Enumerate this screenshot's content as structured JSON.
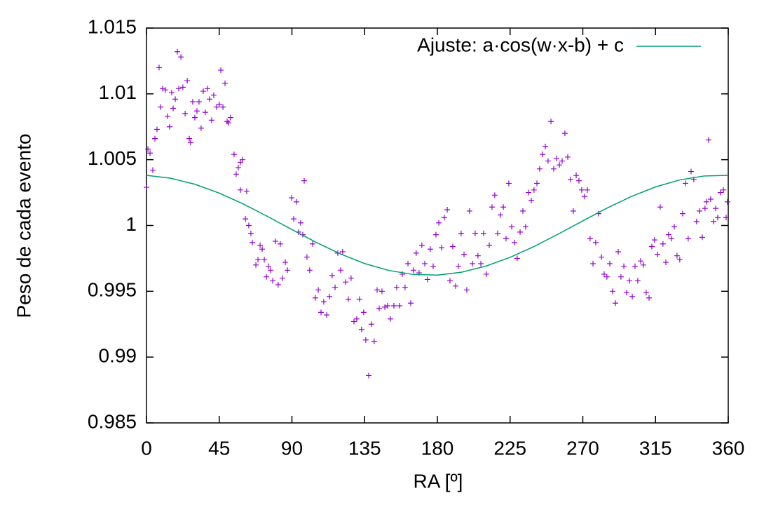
{
  "chart_data": {
    "type": "scatter",
    "x_label": "RA [º]",
    "y_label": "Peso de cada evento",
    "xlim": [
      0,
      360
    ],
    "xticks": [
      0,
      45,
      90,
      135,
      180,
      225,
      270,
      315,
      360
    ],
    "ylim": [
      0.985,
      1.015
    ],
    "yticks": [
      0.985,
      0.99,
      0.995,
      1,
      1.005,
      1.01,
      1.015
    ],
    "legend": "top-right",
    "series": [
      {
        "color": "#9400d3",
        "x": [
          0,
          0.9,
          2.2,
          3.9,
          5.2,
          6.5,
          7.8,
          8.7,
          10,
          11.7,
          13,
          14.3,
          15.6,
          16.5,
          17.8,
          19.1,
          20,
          21.3,
          22.5,
          23.9,
          25.2,
          26.5,
          27.3,
          28.6,
          29.9,
          31.2,
          32.5,
          33.8,
          35.1,
          36.4,
          37.7,
          39,
          40.3,
          41.6,
          43.4,
          45.1,
          46,
          47.3,
          48.6,
          49.9,
          50.7,
          52,
          54.2,
          55.5,
          56.8,
          58.1,
          59.4,
          58.1,
          62,
          61.2,
          63.3,
          64.6,
          65.5,
          67.7,
          69,
          70.3,
          71.6,
          72.9,
          74.2,
          75.5,
          76.8,
          78.1,
          79.8,
          81.5,
          82.8,
          84.1,
          85.9,
          87.2,
          89.8,
          91.1,
          92.8,
          94.1,
          95.4,
          96.7,
          97.6,
          99.3,
          101,
          102.8,
          104.5,
          106.3,
          108,
          109.7,
          111.5,
          113.2,
          114.9,
          116.7,
          118.4,
          120.1,
          121.4,
          123.2,
          124.9,
          126.6,
          128.4,
          130.1,
          131.8,
          133.1,
          134.4,
          135.7,
          137.5,
          139.2,
          140.9,
          142.7,
          144,
          145.7,
          147.5,
          149.2,
          150.9,
          153.1,
          154.8,
          156.6,
          158.3,
          160,
          161.8,
          163.5,
          165.2,
          166.9,
          168.7,
          170.4,
          172.2,
          173.9,
          175.6,
          177.4,
          179.1,
          180.9,
          182.6,
          184.3,
          186.1,
          187.8,
          189.5,
          191.3,
          193,
          194.7,
          196.5,
          198.2,
          199.9,
          201.7,
          203.4,
          205.1,
          206.9,
          208.6,
          210.3,
          212.1,
          213.8,
          215.5,
          217.3,
          219,
          220.8,
          222.5,
          224.2,
          226,
          227.7,
          229.4,
          231.2,
          232.9,
          234.6,
          236.4,
          238.1,
          239.8,
          241.6,
          243.3,
          245.1,
          246.8,
          248.5,
          250.3,
          252,
          253.7,
          255.5,
          257.2,
          258.9,
          260.7,
          262.4,
          264.1,
          265.9,
          267.6,
          269.3,
          271.1,
          272.8,
          274.5,
          276.3,
          278,
          279.7,
          281.5,
          283.2,
          284.9,
          286.7,
          288.4,
          290.2,
          291.9,
          293.6,
          295.4,
          297.1,
          298.8,
          300.6,
          302.3,
          304,
          305.8,
          307.5,
          309.2,
          311,
          312.7,
          314.4,
          316.2,
          317.9,
          319.6,
          321.4,
          323.1,
          324.8,
          326.6,
          328.3,
          330,
          331.8,
          333.5,
          335.2,
          337,
          338.7,
          340.4,
          342.2,
          343.9,
          345.6,
          346.5,
          347.8,
          349.1,
          350.9,
          352.2,
          353.5,
          355.2,
          357,
          358.7,
          359.5
        ],
        "values": [
          1.0029,
          1.0058,
          1.0055,
          1.0042,
          1.0066,
          1.0073,
          1.012,
          1.009,
          1.0104,
          1.0103,
          1.0083,
          1.0075,
          1.0101,
          1.0089,
          1.0096,
          1.0132,
          1.0104,
          1.0128,
          1.0105,
          1.0085,
          1.011,
          1.0066,
          1.0063,
          1.0094,
          1.0082,
          1.0087,
          1.0094,
          1.0074,
          1.0102,
          1.0086,
          1.0104,
          1.0096,
          1.008,
          1.0099,
          1.009,
          1.0092,
          1.0118,
          1.009,
          1.0108,
          1.0079,
          1.0078,
          1.0082,
          1.0054,
          1.0039,
          1.0044,
          1.0048,
          1.005,
          1.0027,
          1.0026,
          1.0005,
          1,
          0.9994,
          0.9987,
          0.997,
          0.9974,
          0.9985,
          0.9982,
          0.9974,
          0.9961,
          0.9969,
          0.9966,
          0.9958,
          0.9988,
          0.9955,
          0.9986,
          0.996,
          0.9972,
          0.9966,
          1.0021,
          1.0005,
          1.0018,
          0.9995,
          1.0002,
          0.9993,
          1.0034,
          0.9976,
          0.9966,
          0.9986,
          0.9945,
          0.9951,
          0.9934,
          0.9942,
          0.9932,
          0.9946,
          0.9962,
          0.9953,
          0.9979,
          0.9966,
          0.998,
          0.9957,
          0.9944,
          0.996,
          0.9927,
          0.9929,
          0.9944,
          0.9921,
          0.9934,
          0.9913,
          0.9886,
          0.9925,
          0.9912,
          0.9951,
          0.9937,
          0.995,
          0.9938,
          0.9939,
          0.9929,
          0.9939,
          0.9953,
          0.9939,
          0.9963,
          0.9953,
          0.9971,
          0.9941,
          0.9966,
          0.9979,
          0.9964,
          0.9985,
          0.9971,
          0.9959,
          0.9982,
          0.9969,
          0.9993,
          1.0002,
          0.9983,
          1.0006,
          1.0012,
          0.9958,
          0.9984,
          0.9954,
          0.9969,
          0.9994,
          0.9978,
          0.9951,
          1.0011,
          0.9971,
          0.9994,
          0.9977,
          0.9971,
          0.9994,
          0.9963,
          0.9985,
          1.0014,
          1.0023,
          0.9994,
          1.0008,
          1.0014,
          0.999,
          1.0032,
          0.9999,
          0.9987,
          0.9975,
          0.9995,
          1.0011,
          0.9999,
          1.0025,
          1.0019,
          1.0027,
          1.0032,
          1.0043,
          1.0054,
          1.006,
          1.0049,
          1.0079,
          1.0043,
          1.0051,
          1.0046,
          1.0049,
          1.007,
          1.0052,
          1.0035,
          1.0011,
          1.0038,
          1.0034,
          1.0027,
          1.0022,
          1.0027,
          0.999,
          0.9971,
          0.9987,
          1.0009,
          0.9976,
          0.9963,
          0.9961,
          0.9971,
          0.995,
          0.9941,
          0.998,
          0.9961,
          0.9969,
          0.9949,
          0.9958,
          0.9946,
          0.9969,
          0.9958,
          0.9973,
          0.997,
          0.9949,
          0.9945,
          0.9984,
          0.9989,
          0.9978,
          1.0014,
          0.9986,
          0.9972,
          0.9993,
          0.999,
          0.9999,
          0.9977,
          0.9974,
          1.0009,
          1.0032,
          0.999,
          1.0041,
          1.0035,
          1.0003,
          1.0011,
          0.9991,
          1.0013,
          1.0018,
          1.0065,
          1.002,
          1.0003,
          1.0013,
          1.0006,
          1.0025,
          1.0027,
          1.0006,
          1.0018
        ]
      },
      {
        "name": "Ajuste: a·cos(w·x-b) + c",
        "color": "#009e73",
        "style": "line",
        "x": [
          0,
          15,
          30,
          45,
          60,
          75,
          90,
          105,
          120,
          135,
          150,
          165,
          180,
          195,
          210,
          225,
          240,
          255,
          270,
          285,
          300,
          315,
          330,
          345,
          360
        ],
        "values": [
          1.00381,
          1.00359,
          1.00313,
          1.00246,
          1.00163,
          1.00068,
          0.99969,
          0.99872,
          0.99784,
          0.99711,
          0.99658,
          0.99628,
          0.99623,
          0.99645,
          0.99691,
          0.99758,
          0.99841,
          0.99936,
          1.00035,
          1.00132,
          1.0022,
          1.00293,
          1.00346,
          1.00376,
          1.00381
        ]
      }
    ]
  }
}
